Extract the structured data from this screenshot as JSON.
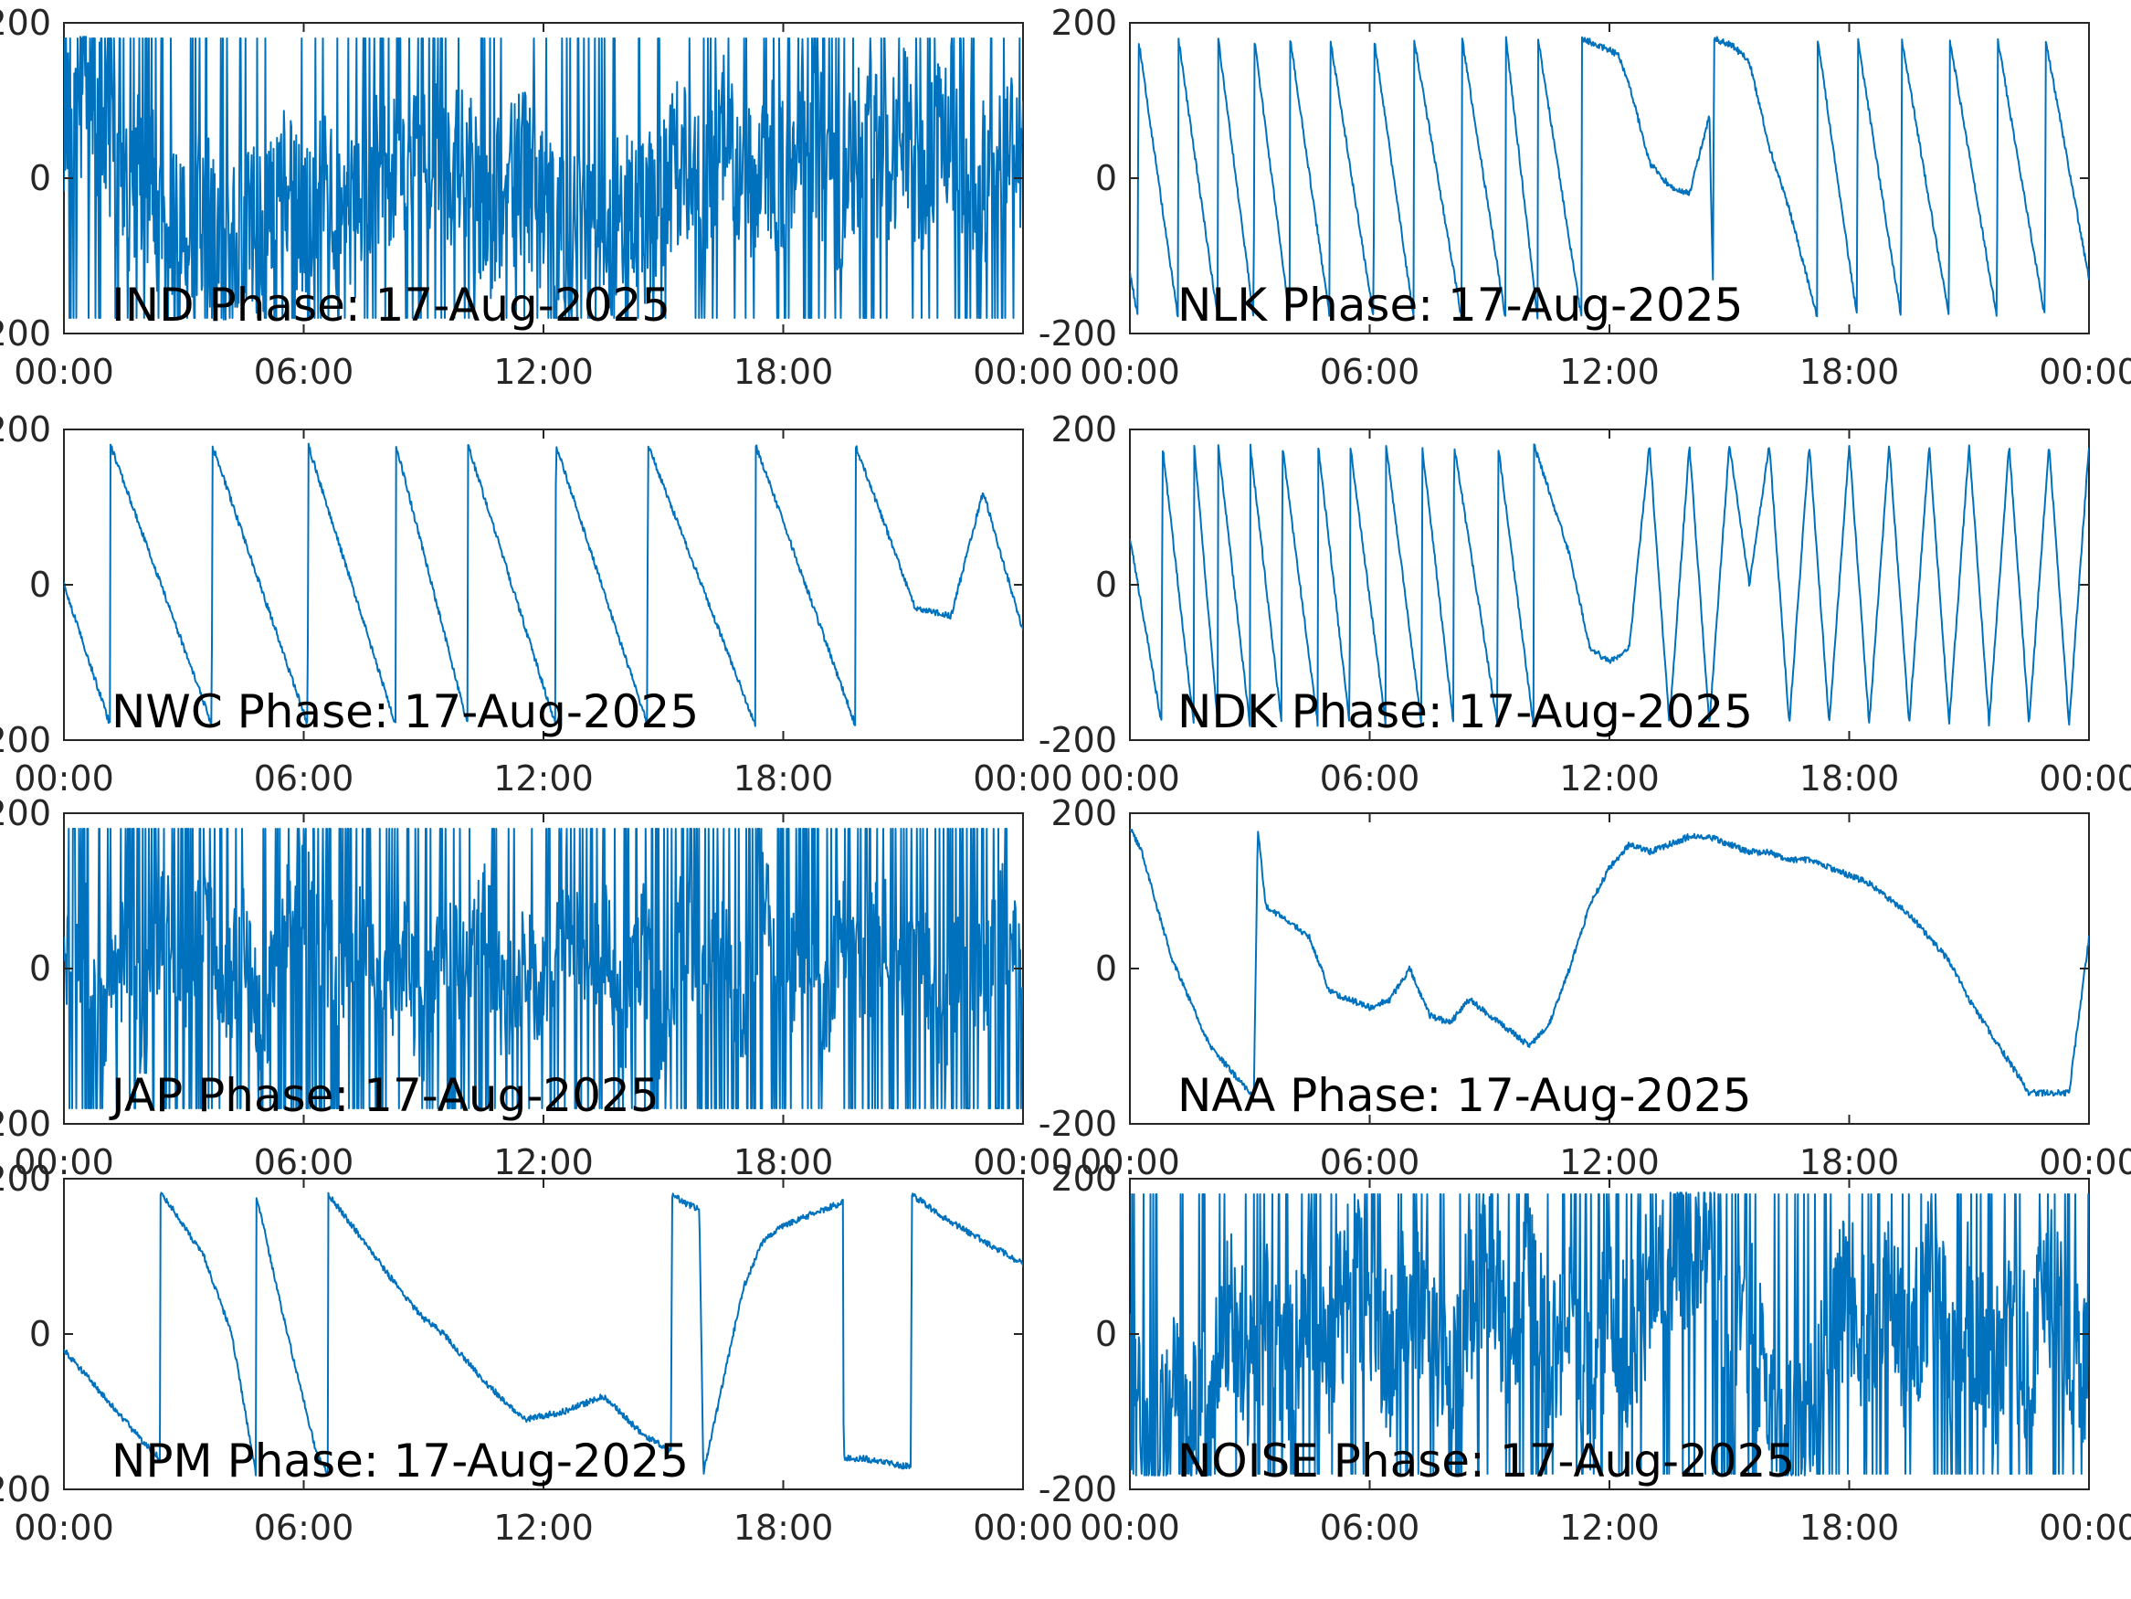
{
  "figure": {
    "line_color": "#0072BD",
    "axes_color": "#262626",
    "background": "#ffffff"
  },
  "chart_data": [
    {
      "type": "line",
      "title": "IND Phase: 17-Aug-2025",
      "xlabel": "",
      "ylabel": "",
      "xlim": [
        "00:00",
        "24:00"
      ],
      "ylim": [
        -200,
        200
      ],
      "xticks": [
        "00:00",
        "06:00",
        "12:00",
        "18:00",
        "00:00"
      ],
      "yticks": [
        "-200",
        "0",
        "200"
      ],
      "grid": false,
      "pattern": "noise",
      "series": [
        {
          "x": [
            0,
            0.5,
            1,
            1.5,
            2,
            2.5,
            3,
            3.5,
            4,
            4.5,
            5,
            5.5,
            6,
            6.5,
            7,
            7.5,
            8,
            8.5,
            9,
            9.5,
            10,
            10.5,
            11,
            11.5,
            12,
            12.5,
            13,
            13.5,
            14,
            14.5,
            15,
            15.5,
            16,
            16.5,
            17,
            17.5,
            18,
            18.5,
            19,
            19.5,
            20,
            20.5,
            21,
            21.5,
            22,
            22.5,
            23,
            23.5,
            24
          ],
          "values": [
            40,
            120,
            60,
            -20,
            10,
            -60,
            -80,
            -40,
            -120,
            -50,
            -80,
            -20,
            -60,
            -10,
            -70,
            -40,
            20,
            -30,
            60,
            -10,
            40,
            -60,
            -20,
            10,
            -40,
            -80,
            -30,
            -90,
            -40,
            -60,
            -20,
            30,
            -40,
            60,
            -20,
            40,
            -10,
            80,
            20,
            -30,
            60,
            10,
            70,
            -20,
            90,
            30,
            -10,
            60,
            20
          ]
        }
      ]
    },
    {
      "type": "line",
      "title": "NLK Phase: 17-Aug-2025",
      "xlabel": "",
      "ylabel": "",
      "xlim": [
        "00:00",
        "24:00"
      ],
      "ylim": [
        -200,
        200
      ],
      "xticks": [
        "00:00",
        "06:00",
        "12:00",
        "18:00",
        "00:00"
      ],
      "yticks": [
        "-200",
        "0",
        "200"
      ],
      "grid": false,
      "pattern": "sawtooth",
      "series": [
        {
          "x": [
            0,
            0.2,
            0.21,
            1.2,
            1.21,
            2.2,
            2.21,
            3.1,
            3.11,
            4,
            4.01,
            5,
            5.01,
            6.1,
            6.11,
            7.1,
            7.11,
            8.3,
            8.31,
            9.4,
            9.41,
            10.2,
            10.21,
            11.3,
            11.31,
            12.2,
            12.5,
            13,
            13.5,
            14,
            14.5,
            14.6,
            14.61,
            15.1,
            15.5,
            16,
            16.5,
            17.2,
            17.21,
            18.2,
            18.21,
            19.3,
            19.31,
            20.5,
            20.51,
            21.7,
            21.71,
            22.9,
            22.91,
            24
          ],
          "values": [
            -120,
            -180,
            180,
            -180,
            180,
            -180,
            180,
            -180,
            180,
            -180,
            180,
            -180,
            180,
            -180,
            180,
            -180,
            180,
            -180,
            180,
            -180,
            180,
            -180,
            180,
            -180,
            180,
            160,
            120,
            20,
            -10,
            -20,
            80,
            -160,
            180,
            170,
            150,
            40,
            -40,
            -180,
            180,
            -180,
            180,
            -180,
            180,
            -180,
            180,
            -180,
            180,
            -180,
            180,
            -130
          ]
        }
      ]
    },
    {
      "type": "line",
      "title": "NWC Phase: 17-Aug-2025",
      "xlabel": "",
      "ylabel": "",
      "xlim": [
        "00:00",
        "24:00"
      ],
      "ylim": [
        -200,
        200
      ],
      "xticks": [
        "00:00",
        "06:00",
        "12:00",
        "18:00",
        "00:00"
      ],
      "yticks": [
        "-200",
        "0",
        "200"
      ],
      "grid": false,
      "pattern": "sawtooth",
      "series": [
        {
          "x": [
            0,
            1.15,
            1.16,
            3.7,
            3.71,
            6.1,
            6.11,
            8.3,
            8.31,
            10.1,
            10.11,
            12.3,
            12.31,
            14.6,
            14.61,
            17.3,
            17.31,
            19.8,
            19.81,
            21.3,
            22.2,
            23,
            24
          ],
          "values": [
            0,
            -180,
            180,
            -180,
            180,
            -180,
            180,
            -180,
            180,
            -180,
            180,
            -180,
            180,
            -180,
            180,
            -180,
            180,
            -180,
            180,
            -30,
            -40,
            120,
            -60
          ]
        }
      ]
    },
    {
      "type": "line",
      "title": "NDK Phase: 17-Aug-2025",
      "xlabel": "",
      "ylabel": "",
      "xlim": [
        "00:00",
        "24:00"
      ],
      "ylim": [
        -200,
        200
      ],
      "xticks": [
        "00:00",
        "06:00",
        "12:00",
        "18:00",
        "00:00"
      ],
      "yticks": [
        "-200",
        "0",
        "200"
      ],
      "grid": false,
      "pattern": "sawtooth",
      "series": [
        {
          "x": [
            0,
            0.8,
            0.81,
            1.6,
            1.61,
            2.2,
            2.21,
            3,
            3.01,
            3.8,
            3.81,
            4.7,
            4.71,
            5.5,
            5.51,
            6.4,
            6.41,
            7.3,
            7.31,
            8.1,
            8.11,
            9.2,
            9.21,
            10.1,
            10.11,
            11,
            11.5,
            12,
            12.5,
            13,
            13.5,
            14,
            14.5,
            15,
            15.5,
            16,
            16.5,
            17,
            17.5,
            18,
            18.5,
            19,
            19.5,
            20,
            20.5,
            21,
            21.5,
            22,
            22.5,
            23,
            23.5,
            24
          ],
          "values": [
            60,
            -180,
            180,
            -180,
            180,
            -180,
            180,
            -180,
            180,
            -180,
            180,
            -180,
            180,
            -180,
            180,
            -180,
            180,
            -180,
            180,
            -180,
            180,
            -180,
            180,
            -180,
            180,
            40,
            -80,
            -100,
            -80,
            180,
            -180,
            180,
            -180,
            180,
            0,
            180,
            -180,
            180,
            -180,
            180,
            -180,
            180,
            -180,
            180,
            -180,
            180,
            -180,
            180,
            -180,
            180,
            -180,
            180
          ]
        }
      ]
    },
    {
      "type": "line",
      "title": "JAP Phase: 17-Aug-2025",
      "xlabel": "",
      "ylabel": "",
      "xlim": [
        "00:00",
        "24:00"
      ],
      "ylim": [
        -200,
        200
      ],
      "xticks": [
        "00:00",
        "06:00",
        "12:00",
        "18:00",
        "00:00"
      ],
      "yticks": [
        "-200",
        "0",
        "200"
      ],
      "grid": false,
      "pattern": "wrap",
      "series": [
        {
          "x": [
            0,
            0.5,
            1,
            1.5,
            2,
            2.5,
            3,
            3.5,
            4,
            4.5,
            5,
            5.5,
            6,
            6.5,
            7,
            7.5,
            8,
            8.5,
            9,
            9.5,
            10,
            10.5,
            11,
            11.5,
            12,
            12.5,
            13,
            13.5,
            14,
            14.5,
            15,
            15.5,
            16,
            16.5,
            17,
            17.5,
            18,
            18.5,
            19,
            19.5,
            20,
            20.5,
            21,
            21.5,
            22,
            22.5,
            23,
            23.5,
            24
          ],
          "values": [
            0,
            40,
            -60,
            20,
            -80,
            60,
            -20,
            80,
            -40,
            30,
            -70,
            50,
            90,
            40,
            -30,
            60,
            -50,
            20,
            -80,
            40,
            -20,
            70,
            -60,
            10,
            -40,
            80,
            -10,
            50,
            -70,
            30,
            -90,
            60,
            -20,
            40,
            -60,
            80,
            -30,
            20,
            -70,
            50,
            -10,
            60,
            -40,
            30,
            -80,
            40,
            -20,
            60,
            -10
          ]
        }
      ]
    },
    {
      "type": "line",
      "title": "NAA Phase: 17-Aug-2025",
      "xlabel": "",
      "ylabel": "",
      "xlim": [
        "00:00",
        "24:00"
      ],
      "ylim": [
        -200,
        200
      ],
      "xticks": [
        "00:00",
        "06:00",
        "12:00",
        "18:00",
        "00:00"
      ],
      "yticks": [
        "-200",
        "0",
        "200"
      ],
      "grid": false,
      "pattern": "smooth",
      "series": [
        {
          "x": [
            0,
            0.3,
            1,
            2,
            3,
            3.1,
            3.2,
            3.4,
            4,
            4.5,
            5,
            5.5,
            6,
            6.5,
            7,
            7.5,
            8,
            8.5,
            9,
            9.5,
            10,
            10.5,
            11,
            11.5,
            12,
            12.5,
            13,
            13.5,
            14,
            14.5,
            15,
            15.5,
            16,
            16.5,
            17,
            17.5,
            18,
            18.5,
            19,
            19.5,
            20,
            20.5,
            21,
            21.5,
            22,
            22.5,
            23,
            23.5,
            24
          ],
          "values": [
            180,
            150,
            20,
            -100,
            -160,
            -170,
            180,
            80,
            60,
            40,
            -30,
            -40,
            -50,
            -40,
            0,
            -60,
            -70,
            -40,
            -60,
            -80,
            -100,
            -70,
            0,
            80,
            130,
            160,
            150,
            160,
            170,
            170,
            160,
            150,
            150,
            140,
            140,
            130,
            120,
            110,
            90,
            70,
            40,
            10,
            -40,
            -80,
            -120,
            -160,
            -160,
            -160,
            40
          ]
        }
      ]
    },
    {
      "type": "line",
      "title": "NPM Phase: 17-Aug-2025",
      "xlabel": "",
      "ylabel": "",
      "xlim": [
        "00:00",
        "24:00"
      ],
      "ylim": [
        -200,
        200
      ],
      "xticks": [
        "00:00",
        "06:00",
        "12:00",
        "18:00",
        "00:00"
      ],
      "yticks": [
        "-200",
        "0",
        "200"
      ],
      "grid": false,
      "pattern": "smooth",
      "series": [
        {
          "x": [
            0,
            1,
            2,
            2.4,
            2.41,
            2.6,
            3.5,
            4.2,
            4.8,
            4.81,
            5.5,
            6.3,
            6.6,
            6.61,
            7.5,
            8.5,
            9,
            9.5,
            10.5,
            11.5,
            12.5,
            13.5,
            14.5,
            15.2,
            15.21,
            15.5,
            15.9,
            16,
            16.5,
            17,
            17.5,
            18,
            18.5,
            19,
            19.5,
            19.51,
            20,
            21,
            21.2,
            21.21,
            22,
            23,
            24
          ],
          "values": [
            -20,
            -80,
            -140,
            -160,
            180,
            170,
            100,
            0,
            -180,
            180,
            20,
            -150,
            -180,
            180,
            120,
            50,
            20,
            0,
            -60,
            -110,
            -100,
            -80,
            -130,
            -150,
            180,
            170,
            160,
            -180,
            -60,
            60,
            120,
            140,
            150,
            160,
            170,
            -160,
            -160,
            -170,
            -170,
            180,
            150,
            120,
            90
          ]
        }
      ]
    },
    {
      "type": "line",
      "title": "NOISE Phase: 17-Aug-2025",
      "xlabel": "",
      "ylabel": "",
      "xlim": [
        "00:00",
        "24:00"
      ],
      "ylim": [
        -200,
        200
      ],
      "xticks": [
        "00:00",
        "06:00",
        "12:00",
        "18:00",
        "00:00"
      ],
      "yticks": [
        "-200",
        "0",
        "200"
      ],
      "grid": false,
      "pattern": "noise",
      "series": [
        {
          "x": [
            0,
            0.5,
            1,
            1.5,
            2,
            2.5,
            3,
            3.5,
            4,
            4.5,
            5,
            5.5,
            6,
            6.5,
            7,
            7.5,
            8,
            8.5,
            9,
            9.5,
            10,
            10.5,
            11,
            11.5,
            12,
            12.5,
            13,
            13.5,
            14,
            14.5,
            15,
            15.5,
            16,
            16.5,
            17,
            17.5,
            18,
            18.5,
            19,
            19.5,
            20,
            20.5,
            21,
            21.5,
            22,
            22.5,
            23,
            23.5,
            24
          ],
          "values": [
            -60,
            -160,
            -80,
            -120,
            -100,
            40,
            -60,
            20,
            -40,
            60,
            -20,
            80,
            40,
            -40,
            60,
            20,
            -60,
            40,
            100,
            -20,
            60,
            -40,
            20,
            -80,
            40,
            -20,
            60,
            100,
            120,
            140,
            -60,
            40,
            -100,
            -140,
            -80,
            20,
            60,
            -20,
            40,
            -40,
            80,
            -20,
            40,
            -60,
            20,
            -40,
            60,
            -20,
            -40
          ]
        }
      ]
    }
  ]
}
